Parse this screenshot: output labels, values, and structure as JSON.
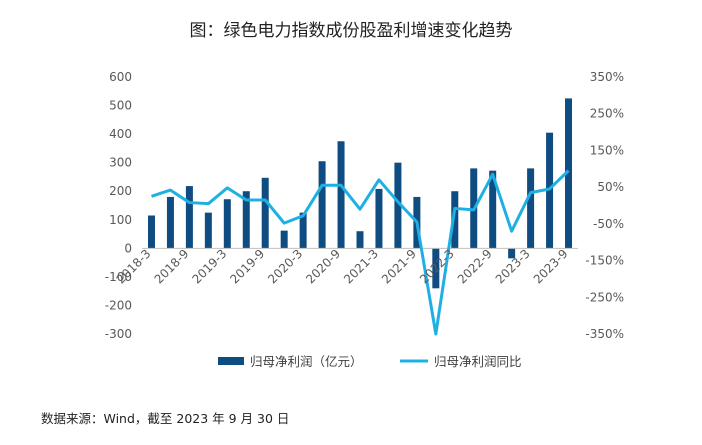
{
  "title": "图：绿色电力指数成份股盈利增速变化趋势",
  "source": "数据来源：Wind，截至 2023 年 9 月 30 日",
  "chart_data": {
    "type": "bar+line",
    "categories": [
      "2018-3",
      "2018-6",
      "2018-9",
      "2018-12",
      "2019-3",
      "2019-6",
      "2019-9",
      "2019-12",
      "2020-3",
      "2020-6",
      "2020-9",
      "2020-12",
      "2021-3",
      "2021-6",
      "2021-9",
      "2021-12",
      "2022-3",
      "2022-6",
      "2022-9",
      "2022-12",
      "2023-3",
      "2023-6",
      "2023-9"
    ],
    "x_tick_labels": [
      "2018-3",
      "2018-9",
      "2019-3",
      "2019-9",
      "2020-3",
      "2020-9",
      "2021-3",
      "2021-9",
      "2022-3",
      "2022-9",
      "2023-3",
      "2023-9"
    ],
    "series": [
      {
        "name": "归母净利润（亿元）",
        "type": "bar",
        "axis": "left",
        "color": "#0f4c81",
        "values": [
          115,
          180,
          218,
          125,
          172,
          200,
          247,
          62,
          125,
          305,
          375,
          60,
          208,
          300,
          180,
          -140,
          200,
          280,
          272,
          -35,
          280,
          405,
          525
        ]
      },
      {
        "name": "归母净利润同比",
        "type": "line",
        "axis": "right",
        "color": "#1fb0e3",
        "values": [
          25,
          42,
          8,
          5,
          48,
          15,
          15,
          -48,
          -28,
          55,
          55,
          -10,
          70,
          10,
          -45,
          -350,
          -8,
          -12,
          85,
          -70,
          35,
          45,
          95
        ]
      }
    ],
    "y_left": {
      "min": -300,
      "max": 600,
      "ticks": [
        -300,
        -200,
        -100,
        0,
        100,
        200,
        300,
        400,
        500,
        600
      ]
    },
    "y_right": {
      "min": -350,
      "max": 350,
      "ticks": [
        "-350%",
        "-250%",
        "-150%",
        "-50%",
        "50%",
        "150%",
        "250%",
        "350%"
      ]
    },
    "grid": false,
    "legend_position": "bottom"
  }
}
